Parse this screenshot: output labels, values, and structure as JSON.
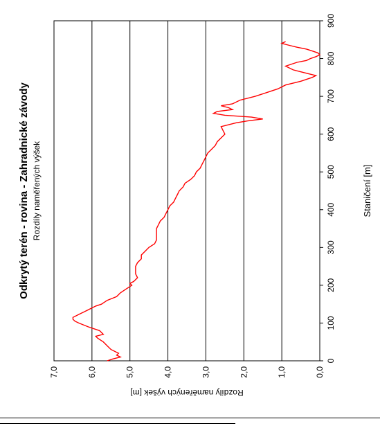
{
  "chart_data": {
    "type": "line",
    "orientation": "rotated-90-ccw",
    "title": "Odkrytý terén - rovina - Zahradnické závody",
    "subtitle": "Rozdíly naměřených výšek",
    "xlabel": "Staničení [m]",
    "ylabel": "Rozdíly naměřených výšek [m]",
    "xlim": [
      0,
      900
    ],
    "ylim": [
      0,
      7
    ],
    "x_ticks": [
      "0",
      "100",
      "200",
      "300",
      "400",
      "500",
      "600",
      "700",
      "800",
      "900"
    ],
    "y_ticks": [
      "0,0",
      "1,0",
      "2,0",
      "3,0",
      "4,0",
      "5,0",
      "6,0",
      "7,0"
    ],
    "grid": "horizontal-major",
    "series": [
      {
        "color": "#ff0000",
        "x": [
          0,
          5,
          10,
          15,
          20,
          30,
          35,
          40,
          50,
          60,
          65,
          70,
          80,
          90,
          100,
          105,
          110,
          115,
          120,
          125,
          130,
          140,
          145,
          150,
          160,
          170,
          180,
          190,
          200,
          205,
          210,
          220,
          230,
          240,
          250,
          260,
          270,
          280,
          290,
          300,
          310,
          320,
          330,
          340,
          350,
          360,
          370,
          380,
          390,
          400,
          410,
          420,
          430,
          440,
          450,
          460,
          470,
          480,
          490,
          500,
          510,
          520,
          530,
          540,
          550,
          560,
          570,
          580,
          590,
          600,
          610,
          620,
          630,
          635,
          640,
          645,
          650,
          655,
          660,
          665,
          670,
          675,
          680,
          690,
          700,
          710,
          720,
          730,
          740,
          750,
          755,
          760,
          765,
          770,
          780,
          790,
          795,
          800,
          805,
          810,
          815,
          820,
          825,
          830,
          835,
          840,
          845
        ],
        "values": [
          5.6,
          5.45,
          5.25,
          5.35,
          5.3,
          5.5,
          5.55,
          5.6,
          5.7,
          5.85,
          5.9,
          5.7,
          5.8,
          6.1,
          6.35,
          6.45,
          6.5,
          6.5,
          6.4,
          6.3,
          6.2,
          6.0,
          5.9,
          5.75,
          5.6,
          5.35,
          5.25,
          5.1,
          4.95,
          5.0,
          4.9,
          4.8,
          4.85,
          4.85,
          4.85,
          4.8,
          4.7,
          4.7,
          4.6,
          4.5,
          4.35,
          4.3,
          4.3,
          4.3,
          4.3,
          4.25,
          4.2,
          4.1,
          4.05,
          4.0,
          3.95,
          3.85,
          3.8,
          3.75,
          3.7,
          3.6,
          3.55,
          3.4,
          3.3,
          3.25,
          3.15,
          3.1,
          3.05,
          3.0,
          2.95,
          2.85,
          2.75,
          2.7,
          2.6,
          2.5,
          2.55,
          2.6,
          2.2,
          1.9,
          1.5,
          1.8,
          2.5,
          2.8,
          2.7,
          2.3,
          2.4,
          2.6,
          2.3,
          2.1,
          1.7,
          1.4,
          1.1,
          0.9,
          0.5,
          0.2,
          0.1,
          0.3,
          0.5,
          0.7,
          0.9,
          0.6,
          0.35,
          0.25,
          0.1,
          0.0,
          0.05,
          0.2,
          0.35,
          0.6,
          0.8,
          1.0,
          0.9
        ]
      }
    ]
  }
}
